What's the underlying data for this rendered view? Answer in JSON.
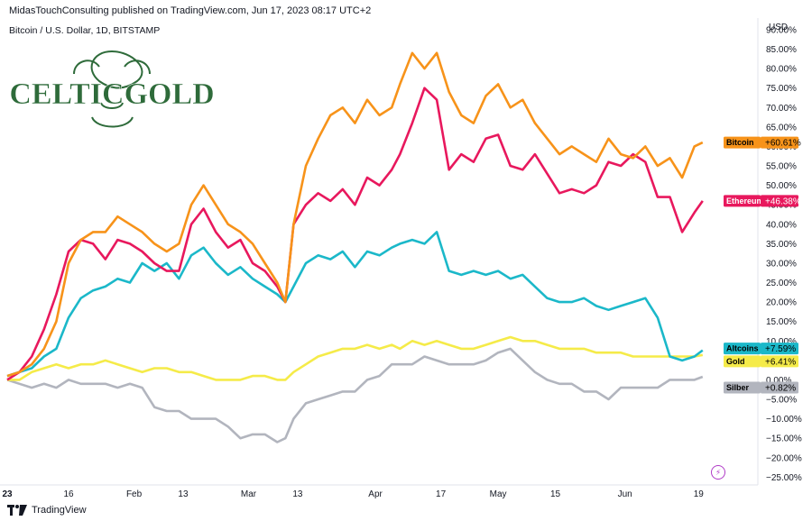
{
  "header": {
    "published": "MidasTouchConsulting published on TradingView.com, Jun 17, 2023 08:17 UTC+2",
    "symbol": "Bitcoin / U.S. Dollar, 1D, BITSTAMP"
  },
  "logo": {
    "text": "CELTICGOLD",
    "color": "#2e6b3a"
  },
  "footer": {
    "brand": "TradingView"
  },
  "chart_data": {
    "type": "line",
    "currency_label": "USD",
    "y_ticks": [
      "90.00%",
      "85.00%",
      "80.00%",
      "75.00%",
      "70.00%",
      "65.00%",
      "60.00%",
      "55.00%",
      "50.00%",
      "45.00%",
      "40.00%",
      "35.00%",
      "30.00%",
      "25.00%",
      "20.00%",
      "15.00%",
      "10.00%",
      "5.00%",
      "0.00%",
      "−5.00%",
      "−10.00%",
      "−15.00%",
      "−20.00%",
      "−25.00%"
    ],
    "ylim": [
      -27,
      93
    ],
    "x_ticks": [
      {
        "label": "23",
        "day": 0,
        "bold": true
      },
      {
        "label": "16",
        "day": 15
      },
      {
        "label": "Feb",
        "day": 31
      },
      {
        "label": "13",
        "day": 43
      },
      {
        "label": "Mar",
        "day": 59
      },
      {
        "label": "13",
        "day": 71
      },
      {
        "label": "Apr",
        "day": 90
      },
      {
        "label": "17",
        "day": 106
      },
      {
        "label": "May",
        "day": 120
      },
      {
        "label": "15",
        "day": 134
      },
      {
        "label": "Jun",
        "day": 151
      },
      {
        "label": "19",
        "day": 169
      }
    ],
    "xlim": [
      0,
      176
    ],
    "series": [
      {
        "name": "Bitcoin",
        "label": "+60.61%",
        "color": "#f7931a",
        "text_color": "#000000",
        "points": [
          [
            0,
            1
          ],
          [
            3,
            2
          ],
          [
            6,
            4
          ],
          [
            9,
            8
          ],
          [
            12,
            15
          ],
          [
            15,
            30
          ],
          [
            18,
            36
          ],
          [
            21,
            38
          ],
          [
            24,
            38
          ],
          [
            27,
            42
          ],
          [
            30,
            40
          ],
          [
            33,
            38
          ],
          [
            36,
            35
          ],
          [
            39,
            33
          ],
          [
            42,
            35
          ],
          [
            45,
            45
          ],
          [
            48,
            50
          ],
          [
            51,
            45
          ],
          [
            54,
            40
          ],
          [
            57,
            38
          ],
          [
            60,
            35
          ],
          [
            63,
            30
          ],
          [
            66,
            25
          ],
          [
            68,
            20
          ],
          [
            70,
            40
          ],
          [
            73,
            55
          ],
          [
            76,
            62
          ],
          [
            79,
            68
          ],
          [
            82,
            70
          ],
          [
            85,
            66
          ],
          [
            88,
            72
          ],
          [
            91,
            68
          ],
          [
            94,
            70
          ],
          [
            96,
            76
          ],
          [
            99,
            84
          ],
          [
            102,
            80
          ],
          [
            105,
            84
          ],
          [
            108,
            74
          ],
          [
            111,
            68
          ],
          [
            114,
            66
          ],
          [
            117,
            73
          ],
          [
            120,
            76
          ],
          [
            123,
            70
          ],
          [
            126,
            72
          ],
          [
            129,
            66
          ],
          [
            132,
            62
          ],
          [
            135,
            58
          ],
          [
            138,
            60
          ],
          [
            141,
            58
          ],
          [
            144,
            56
          ],
          [
            147,
            62
          ],
          [
            150,
            58
          ],
          [
            153,
            57
          ],
          [
            156,
            60
          ],
          [
            159,
            55
          ],
          [
            162,
            57
          ],
          [
            165,
            52
          ],
          [
            168,
            60
          ],
          [
            170,
            61
          ]
        ]
      },
      {
        "name": "Ethereum",
        "label": "+46.38%",
        "color": "#e8185d",
        "text_color": "#ffffff",
        "points": [
          [
            0,
            0
          ],
          [
            3,
            2
          ],
          [
            6,
            6
          ],
          [
            9,
            13
          ],
          [
            12,
            22
          ],
          [
            15,
            33
          ],
          [
            18,
            36
          ],
          [
            21,
            35
          ],
          [
            24,
            31
          ],
          [
            27,
            36
          ],
          [
            30,
            35
          ],
          [
            33,
            33
          ],
          [
            36,
            30
          ],
          [
            39,
            28
          ],
          [
            42,
            28
          ],
          [
            45,
            40
          ],
          [
            48,
            44
          ],
          [
            51,
            38
          ],
          [
            54,
            34
          ],
          [
            57,
            36
          ],
          [
            60,
            30
          ],
          [
            63,
            28
          ],
          [
            66,
            24
          ],
          [
            68,
            20
          ],
          [
            70,
            40
          ],
          [
            73,
            45
          ],
          [
            76,
            48
          ],
          [
            79,
            46
          ],
          [
            82,
            49
          ],
          [
            85,
            45
          ],
          [
            88,
            52
          ],
          [
            91,
            50
          ],
          [
            94,
            54
          ],
          [
            96,
            58
          ],
          [
            99,
            66
          ],
          [
            102,
            75
          ],
          [
            105,
            72
          ],
          [
            108,
            54
          ],
          [
            111,
            58
          ],
          [
            114,
            56
          ],
          [
            117,
            62
          ],
          [
            120,
            63
          ],
          [
            123,
            55
          ],
          [
            126,
            54
          ],
          [
            129,
            58
          ],
          [
            132,
            53
          ],
          [
            135,
            48
          ],
          [
            138,
            49
          ],
          [
            141,
            48
          ],
          [
            144,
            50
          ],
          [
            147,
            56
          ],
          [
            150,
            55
          ],
          [
            153,
            58
          ],
          [
            156,
            56
          ],
          [
            159,
            47
          ],
          [
            162,
            47
          ],
          [
            165,
            38
          ],
          [
            168,
            43
          ],
          [
            170,
            46
          ]
        ]
      },
      {
        "name": "Altcoins",
        "label": "+7.59%",
        "color": "#1bb8c9",
        "text_color": "#000000",
        "points": [
          [
            0,
            1
          ],
          [
            3,
            2
          ],
          [
            6,
            3
          ],
          [
            9,
            6
          ],
          [
            12,
            8
          ],
          [
            15,
            16
          ],
          [
            18,
            21
          ],
          [
            21,
            23
          ],
          [
            24,
            24
          ],
          [
            27,
            26
          ],
          [
            30,
            25
          ],
          [
            33,
            30
          ],
          [
            36,
            28
          ],
          [
            39,
            30
          ],
          [
            42,
            26
          ],
          [
            45,
            32
          ],
          [
            48,
            34
          ],
          [
            51,
            30
          ],
          [
            54,
            27
          ],
          [
            57,
            29
          ],
          [
            60,
            26
          ],
          [
            63,
            24
          ],
          [
            66,
            22
          ],
          [
            68,
            20
          ],
          [
            70,
            24
          ],
          [
            73,
            30
          ],
          [
            76,
            32
          ],
          [
            79,
            31
          ],
          [
            82,
            33
          ],
          [
            85,
            29
          ],
          [
            88,
            33
          ],
          [
            91,
            32
          ],
          [
            94,
            34
          ],
          [
            96,
            35
          ],
          [
            99,
            36
          ],
          [
            102,
            35
          ],
          [
            105,
            38
          ],
          [
            108,
            28
          ],
          [
            111,
            27
          ],
          [
            114,
            28
          ],
          [
            117,
            27
          ],
          [
            120,
            28
          ],
          [
            123,
            26
          ],
          [
            126,
            27
          ],
          [
            129,
            24
          ],
          [
            132,
            21
          ],
          [
            135,
            20
          ],
          [
            138,
            20
          ],
          [
            141,
            21
          ],
          [
            144,
            19
          ],
          [
            147,
            18
          ],
          [
            150,
            19
          ],
          [
            153,
            20
          ],
          [
            156,
            21
          ],
          [
            159,
            16
          ],
          [
            162,
            6
          ],
          [
            165,
            5
          ],
          [
            168,
            6
          ],
          [
            170,
            7.6
          ]
        ]
      },
      {
        "name": "Gold",
        "label": "+6.41%",
        "color": "#f5eb49",
        "text_color": "#000000",
        "points": [
          [
            0,
            0
          ],
          [
            3,
            0
          ],
          [
            6,
            2
          ],
          [
            9,
            3
          ],
          [
            12,
            4
          ],
          [
            15,
            3
          ],
          [
            18,
            4
          ],
          [
            21,
            4
          ],
          [
            24,
            5
          ],
          [
            27,
            4
          ],
          [
            30,
            3
          ],
          [
            33,
            2
          ],
          [
            36,
            3
          ],
          [
            39,
            3
          ],
          [
            42,
            2
          ],
          [
            45,
            2
          ],
          [
            48,
            1
          ],
          [
            51,
            0
          ],
          [
            54,
            0
          ],
          [
            57,
            0
          ],
          [
            60,
            1
          ],
          [
            63,
            1
          ],
          [
            66,
            0
          ],
          [
            68,
            0
          ],
          [
            70,
            2
          ],
          [
            73,
            4
          ],
          [
            76,
            6
          ],
          [
            79,
            7
          ],
          [
            82,
            8
          ],
          [
            85,
            8
          ],
          [
            88,
            9
          ],
          [
            91,
            8
          ],
          [
            94,
            9
          ],
          [
            96,
            8
          ],
          [
            99,
            10
          ],
          [
            102,
            9
          ],
          [
            105,
            10
          ],
          [
            108,
            9
          ],
          [
            111,
            8
          ],
          [
            114,
            8
          ],
          [
            117,
            9
          ],
          [
            120,
            10
          ],
          [
            123,
            11
          ],
          [
            126,
            10
          ],
          [
            129,
            10
          ],
          [
            132,
            9
          ],
          [
            135,
            8
          ],
          [
            138,
            8
          ],
          [
            141,
            8
          ],
          [
            144,
            7
          ],
          [
            147,
            7
          ],
          [
            150,
            7
          ],
          [
            153,
            6
          ],
          [
            156,
            6
          ],
          [
            159,
            6
          ],
          [
            162,
            6
          ],
          [
            165,
            6
          ],
          [
            168,
            6
          ],
          [
            170,
            6.4
          ]
        ]
      },
      {
        "name": "Silber",
        "label": "+0.82%",
        "color": "#b2b5be",
        "text_color": "#000000",
        "points": [
          [
            0,
            0
          ],
          [
            3,
            -1
          ],
          [
            6,
            -2
          ],
          [
            9,
            -1
          ],
          [
            12,
            -2
          ],
          [
            15,
            0
          ],
          [
            18,
            -1
          ],
          [
            21,
            -1
          ],
          [
            24,
            -1
          ],
          [
            27,
            -2
          ],
          [
            30,
            -1
          ],
          [
            33,
            -2
          ],
          [
            36,
            -7
          ],
          [
            39,
            -8
          ],
          [
            42,
            -8
          ],
          [
            45,
            -10
          ],
          [
            48,
            -10
          ],
          [
            51,
            -10
          ],
          [
            54,
            -12
          ],
          [
            57,
            -15
          ],
          [
            60,
            -14
          ],
          [
            63,
            -14
          ],
          [
            66,
            -16
          ],
          [
            68,
            -15
          ],
          [
            70,
            -10
          ],
          [
            73,
            -6
          ],
          [
            76,
            -5
          ],
          [
            79,
            -4
          ],
          [
            82,
            -3
          ],
          [
            85,
            -3
          ],
          [
            88,
            0
          ],
          [
            91,
            1
          ],
          [
            94,
            4
          ],
          [
            96,
            4
          ],
          [
            99,
            4
          ],
          [
            102,
            6
          ],
          [
            105,
            5
          ],
          [
            108,
            4
          ],
          [
            111,
            4
          ],
          [
            114,
            4
          ],
          [
            117,
            5
          ],
          [
            120,
            7
          ],
          [
            123,
            8
          ],
          [
            126,
            5
          ],
          [
            129,
            2
          ],
          [
            132,
            0
          ],
          [
            135,
            -1
          ],
          [
            138,
            -1
          ],
          [
            141,
            -3
          ],
          [
            144,
            -3
          ],
          [
            147,
            -5
          ],
          [
            150,
            -2
          ],
          [
            153,
            -2
          ],
          [
            156,
            -2
          ],
          [
            159,
            -2
          ],
          [
            162,
            0
          ],
          [
            165,
            0
          ],
          [
            168,
            0
          ],
          [
            170,
            0.8
          ]
        ]
      }
    ]
  }
}
